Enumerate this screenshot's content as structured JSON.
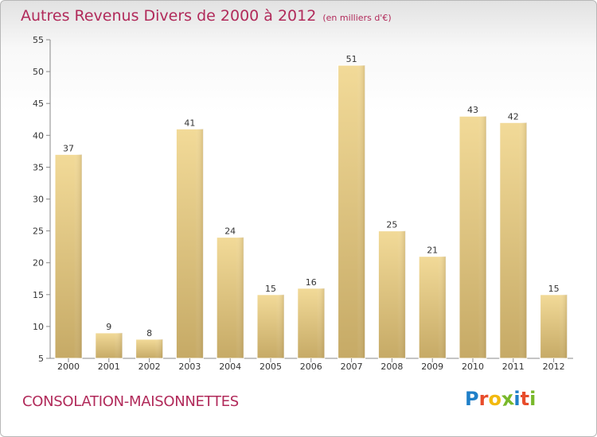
{
  "header": {
    "title": "Autres Revenus Divers de 2000 à 2012",
    "subtitle": "(en milliers d'€)"
  },
  "footer": {
    "location": "CONSOLATION-MAISONNETTES",
    "logo_letters": [
      "P",
      "r",
      "o",
      "x",
      "i",
      "t",
      "i"
    ],
    "logo_colors": [
      "#1f7fc8",
      "#e84c2b",
      "#f2b90f",
      "#78b82a",
      "#1f7fc8",
      "#e84c2b",
      "#78b82a"
    ]
  },
  "colors": {
    "bar_light": "#f2da98",
    "bar_dark": "#c6aa66",
    "axis": "#888888",
    "grid": "#cccccc"
  },
  "chart_data": {
    "type": "bar",
    "title": "Autres Revenus Divers de 2000 à 2012",
    "subtitle": "(en milliers d'€)",
    "categories": [
      "2000",
      "2001",
      "2002",
      "2003",
      "2004",
      "2005",
      "2006",
      "2007",
      "2008",
      "2009",
      "2010",
      "2011",
      "2012"
    ],
    "values": [
      37,
      9,
      8,
      41,
      24,
      15,
      16,
      51,
      25,
      21,
      43,
      42,
      15
    ],
    "ylim": [
      5,
      55
    ],
    "yticks": [
      5,
      10,
      15,
      20,
      25,
      30,
      35,
      40,
      45,
      50,
      55
    ],
    "grid": false
  }
}
